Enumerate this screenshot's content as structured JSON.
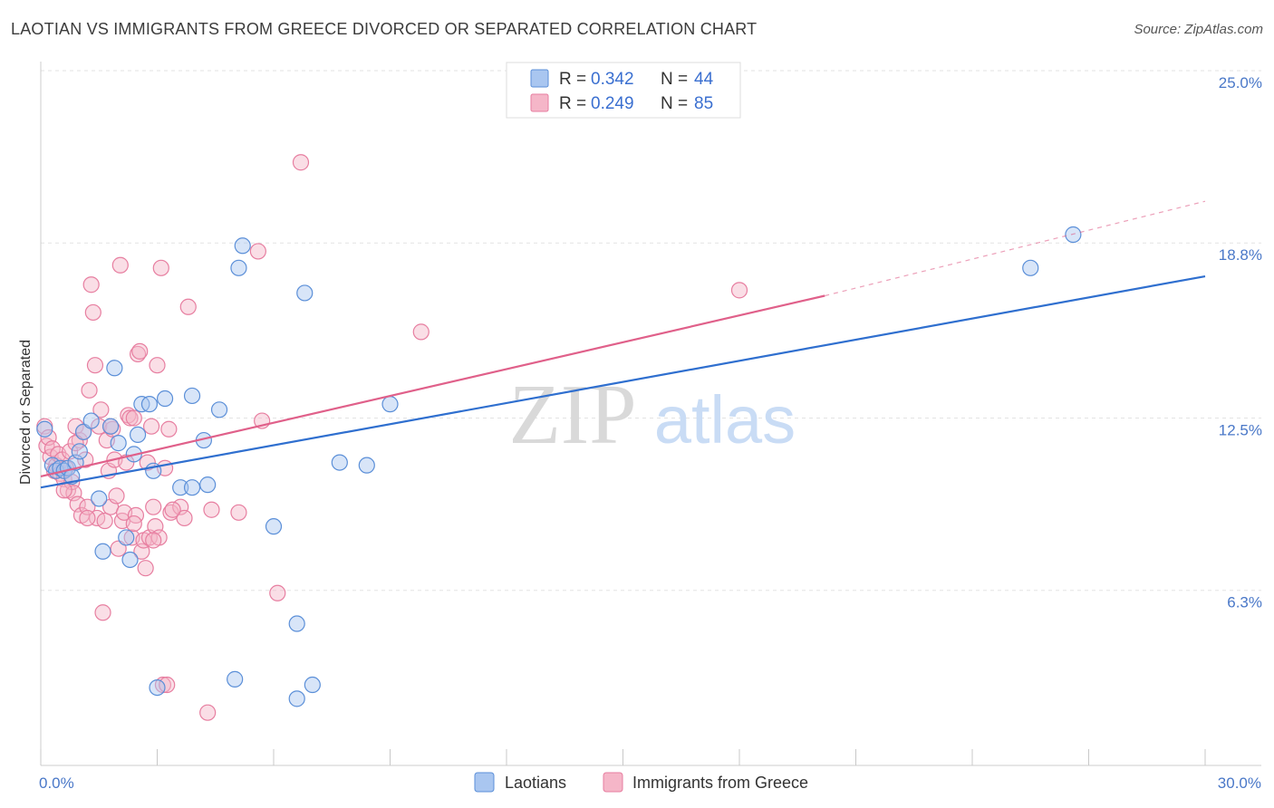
{
  "title": "LAOTIAN VS IMMIGRANTS FROM GREECE DIVORCED OR SEPARATED CORRELATION CHART",
  "source": "Source: ZipAtlas.com",
  "watermark": {
    "zip": "ZIP",
    "atlas": "atlas"
  },
  "colors": {
    "laotians_fill": "#a9c6f0",
    "laotians_stroke": "#5b8fd8",
    "laotians_line": "#2f6fcf",
    "greece_fill": "#f5b6c8",
    "greece_stroke": "#e77ea0",
    "greece_line": "#e0608a",
    "grid": "#e3e3e3",
    "tick_label": "#4a78c8"
  },
  "legend": {
    "r_label": "R =",
    "n_label": "N =",
    "rows": [
      {
        "series": "laotians",
        "r": "0.342",
        "n": "44"
      },
      {
        "series": "greece",
        "r": "0.249",
        "n": "85"
      }
    ]
  },
  "bottom_legend": [
    "Laotians",
    "Immigrants from Greece"
  ],
  "chart_data": {
    "type": "scatter",
    "title": "LAOTIAN VS IMMIGRANTS FROM GREECE DIVORCED OR SEPARATED CORRELATION CHART",
    "xlabel": "",
    "ylabel": "Divorced or Separated",
    "xlim": [
      0,
      30
    ],
    "ylim": [
      0,
      25
    ],
    "x_tick_labels": [
      "0.0%",
      "30.0%"
    ],
    "y_ticks": [
      6.3,
      12.5,
      18.8,
      25.0
    ],
    "y_tick_labels": [
      "6.3%",
      "12.5%",
      "18.8%",
      "25.0%"
    ],
    "grid": true,
    "legend_position": "top-center",
    "series": [
      {
        "name": "Laotians",
        "r": 0.342,
        "n": 44,
        "trend": {
          "x": [
            0,
            30
          ],
          "y": [
            10.0,
            17.6
          ]
        },
        "points": [
          [
            0.1,
            12.1
          ],
          [
            0.3,
            10.8
          ],
          [
            0.4,
            10.6
          ],
          [
            0.5,
            10.7
          ],
          [
            0.6,
            10.6
          ],
          [
            0.7,
            10.7
          ],
          [
            0.8,
            10.4
          ],
          [
            0.9,
            10.9
          ],
          [
            1.0,
            11.3
          ],
          [
            1.1,
            12.0
          ],
          [
            1.3,
            12.4
          ],
          [
            1.5,
            9.6
          ],
          [
            1.6,
            7.7
          ],
          [
            1.8,
            12.2
          ],
          [
            1.9,
            14.3
          ],
          [
            2.0,
            11.6
          ],
          [
            2.2,
            8.2
          ],
          [
            2.3,
            7.4
          ],
          [
            2.4,
            11.2
          ],
          [
            2.5,
            11.9
          ],
          [
            2.6,
            13.0
          ],
          [
            2.8,
            13.0
          ],
          [
            2.9,
            10.6
          ],
          [
            3.0,
            2.8
          ],
          [
            3.2,
            13.2
          ],
          [
            3.6,
            10.0
          ],
          [
            3.9,
            10.0
          ],
          [
            3.9,
            13.3
          ],
          [
            4.2,
            11.7
          ],
          [
            4.3,
            10.1
          ],
          [
            4.6,
            12.8
          ],
          [
            5.0,
            3.1
          ],
          [
            5.1,
            17.9
          ],
          [
            5.2,
            18.7
          ],
          [
            6.0,
            8.6
          ],
          [
            6.6,
            2.4
          ],
          [
            6.6,
            5.1
          ],
          [
            6.8,
            17.0
          ],
          [
            7.0,
            2.9
          ],
          [
            7.7,
            10.9
          ],
          [
            8.4,
            10.8
          ],
          [
            9.0,
            13.0
          ],
          [
            25.5,
            17.9
          ],
          [
            26.6,
            19.1
          ]
        ]
      },
      {
        "name": "Immigrants from Greece",
        "r": 0.249,
        "n": 85,
        "trend": {
          "x": [
            0,
            20.2
          ],
          "y": [
            10.4,
            16.9
          ]
        },
        "trend_dashed": {
          "x": [
            20.2,
            30
          ],
          "y": [
            16.9,
            20.3
          ]
        },
        "points": [
          [
            0.1,
            12.2
          ],
          [
            0.15,
            11.5
          ],
          [
            0.2,
            11.8
          ],
          [
            0.25,
            11.1
          ],
          [
            0.3,
            11.4
          ],
          [
            0.35,
            10.6
          ],
          [
            0.4,
            10.8
          ],
          [
            0.45,
            11.2
          ],
          [
            0.5,
            10.5
          ],
          [
            0.55,
            11.0
          ],
          [
            0.6,
            10.3
          ],
          [
            0.65,
            10.7
          ],
          [
            0.7,
            9.9
          ],
          [
            0.75,
            11.3
          ],
          [
            0.8,
            10.2
          ],
          [
            0.85,
            9.8
          ],
          [
            0.9,
            12.2
          ],
          [
            0.95,
            9.4
          ],
          [
            1.0,
            11.7
          ],
          [
            1.05,
            9.0
          ],
          [
            1.1,
            12.0
          ],
          [
            1.15,
            11.0
          ],
          [
            1.2,
            9.3
          ],
          [
            1.25,
            13.5
          ],
          [
            1.3,
            17.3
          ],
          [
            1.35,
            16.3
          ],
          [
            1.4,
            14.4
          ],
          [
            1.45,
            8.9
          ],
          [
            1.5,
            12.2
          ],
          [
            1.55,
            12.8
          ],
          [
            1.6,
            5.5
          ],
          [
            1.65,
            8.8
          ],
          [
            1.7,
            11.7
          ],
          [
            1.75,
            10.6
          ],
          [
            1.8,
            9.3
          ],
          [
            1.85,
            12.1
          ],
          [
            1.9,
            11.0
          ],
          [
            1.95,
            9.7
          ],
          [
            2.0,
            7.8
          ],
          [
            2.05,
            18.0
          ],
          [
            2.1,
            8.8
          ],
          [
            2.15,
            9.1
          ],
          [
            2.2,
            10.9
          ],
          [
            2.25,
            12.6
          ],
          [
            2.3,
            12.5
          ],
          [
            2.35,
            8.2
          ],
          [
            2.4,
            12.5
          ],
          [
            2.45,
            9.0
          ],
          [
            2.5,
            14.8
          ],
          [
            2.55,
            14.9
          ],
          [
            2.6,
            7.7
          ],
          [
            2.65,
            8.1
          ],
          [
            2.7,
            7.1
          ],
          [
            2.75,
            10.9
          ],
          [
            2.8,
            8.2
          ],
          [
            2.85,
            12.2
          ],
          [
            2.9,
            9.3
          ],
          [
            2.95,
            8.6
          ],
          [
            3.0,
            14.4
          ],
          [
            3.05,
            8.2
          ],
          [
            3.1,
            17.9
          ],
          [
            3.15,
            2.9
          ],
          [
            3.2,
            10.7
          ],
          [
            3.25,
            2.9
          ],
          [
            3.3,
            12.1
          ],
          [
            3.35,
            9.1
          ],
          [
            3.6,
            9.3
          ],
          [
            3.7,
            8.9
          ],
          [
            3.8,
            16.5
          ],
          [
            4.3,
            1.9
          ],
          [
            4.4,
            9.2
          ],
          [
            5.1,
            9.1
          ],
          [
            5.6,
            18.5
          ],
          [
            5.7,
            12.4
          ],
          [
            6.1,
            6.2
          ],
          [
            6.7,
            21.7
          ],
          [
            9.8,
            15.6
          ],
          [
            18.0,
            17.1
          ],
          [
            0.6,
            9.9
          ],
          [
            1.2,
            8.9
          ],
          [
            1.8,
            12.2
          ],
          [
            2.4,
            8.7
          ],
          [
            2.9,
            8.1
          ],
          [
            3.4,
            9.2
          ],
          [
            0.9,
            11.6
          ]
        ]
      }
    ]
  }
}
